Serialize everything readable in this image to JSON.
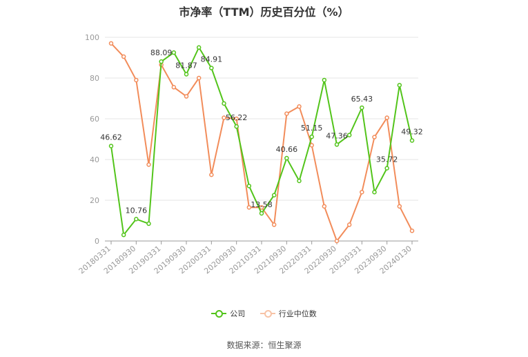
{
  "chart_data": {
    "type": "line",
    "title": "市净率（TTM）历史百分位（%）",
    "ylim": [
      0,
      100
    ],
    "yticks": [
      "0",
      "20",
      "40",
      "60",
      "80",
      "100"
    ],
    "x_tick_labels": [
      "20180331",
      "20180930",
      "20190331",
      "20190930",
      "20200331",
      "20200930",
      "20210331",
      "20210930",
      "20220331",
      "20220930",
      "20230331",
      "20230930",
      "20240130"
    ],
    "x": [
      "20180331",
      "20180630",
      "20180930",
      "20181231",
      "20190331",
      "20190630",
      "20190930",
      "20191231",
      "20200331",
      "20200630",
      "20200930",
      "20201231",
      "20210331",
      "20210630",
      "20210930",
      "20211231",
      "20220331",
      "20220630",
      "20220930",
      "20221231",
      "20230331",
      "20230630",
      "20230930",
      "20231231",
      "20240130"
    ],
    "grid": true,
    "legend_position": "bottom",
    "series": [
      {
        "name": "公司",
        "color": "#52c41a",
        "values": [
          46.62,
          3,
          10.76,
          8.5,
          88.09,
          92.5,
          81.87,
          95,
          84.91,
          67.5,
          56.22,
          27,
          13.58,
          22.5,
          40.66,
          29.5,
          51.15,
          79,
          47.36,
          52,
          65.43,
          24,
          35.72,
          76.5,
          49.32
        ],
        "labels": {
          "0": "46.62",
          "2": "10.76",
          "4": "88.09",
          "6": "81.87",
          "8": "84.91",
          "10": "56.22",
          "12": "13.58",
          "14": "40.66",
          "16": "51.15",
          "18": "47.36",
          "20": "65.43",
          "22": "35.72",
          "24": "49.32"
        }
      },
      {
        "name": "行业中位数",
        "color": "#f28c5a",
        "values": [
          97,
          90.5,
          79,
          37.5,
          86.5,
          75.5,
          71,
          80,
          32.5,
          60.5,
          60,
          16.5,
          16.5,
          8,
          62.5,
          66,
          47,
          17,
          0,
          8,
          24,
          51,
          60.5,
          17,
          5
        ]
      }
    ]
  },
  "source_text": "数据来源：恒生聚源"
}
